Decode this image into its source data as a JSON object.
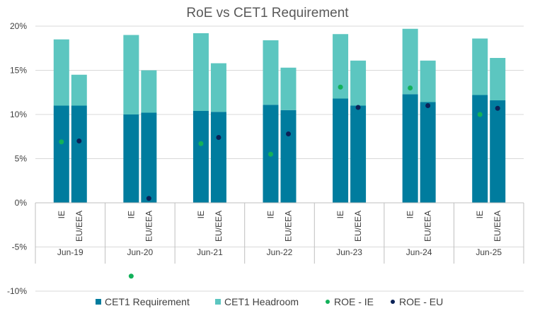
{
  "title": "RoE vs CET1 Requirement",
  "colors": {
    "cet1_requirement": "#007C9E",
    "cet1_headroom": "#5CC6C0",
    "roe_ie": "#12B15A",
    "roe_eu": "#0B2257",
    "gridline": "#D9D9D9",
    "separator": "#BFBFBF"
  },
  "chart_data": {
    "type": "bar",
    "subtype": "stacked bar with dot overlay",
    "title": "RoE vs CET1 Requirement",
    "categories": [
      "Jun-19",
      "Jun-20",
      "Jun-21",
      "Jun-22",
      "Jun-23",
      "Jun-24",
      "Jun-25"
    ],
    "subcategories": [
      "IE",
      "EU/EEA"
    ],
    "ylim": [
      -0.1,
      0.2
    ],
    "yticks": [
      "20%",
      "15%",
      "10%",
      "5%",
      "0%",
      "-5%",
      "-10%"
    ],
    "ytick_values": [
      0.2,
      0.15,
      0.1,
      0.05,
      0.0,
      -0.05,
      -0.1
    ],
    "grid": true,
    "legend_position": "bottom",
    "series": [
      {
        "name": "CET1 Requirement",
        "kind": "bar",
        "values": [
          [
            0.11,
            0.11
          ],
          [
            0.1,
            0.102
          ],
          [
            0.104,
            0.103
          ],
          [
            0.111,
            0.105
          ],
          [
            0.118,
            0.11
          ],
          [
            0.123,
            0.114
          ],
          [
            0.122,
            0.116
          ]
        ]
      },
      {
        "name": "CET1 Headroom",
        "kind": "bar",
        "values": [
          [
            0.075,
            0.035
          ],
          [
            0.09,
            0.048
          ],
          [
            0.088,
            0.055
          ],
          [
            0.073,
            0.048
          ],
          [
            0.073,
            0.051
          ],
          [
            0.074,
            0.047
          ],
          [
            0.064,
            0.048
          ]
        ]
      },
      {
        "name": "ROE - IE",
        "kind": "dot",
        "subcategory": "IE",
        "values": [
          0.069,
          -0.083,
          0.067,
          0.055,
          0.131,
          0.13,
          0.1
        ]
      },
      {
        "name": "ROE - EU",
        "kind": "dot",
        "subcategory": "EU/EEA",
        "values": [
          0.07,
          0.005,
          0.074,
          0.078,
          0.108,
          0.11,
          0.107
        ]
      }
    ]
  }
}
